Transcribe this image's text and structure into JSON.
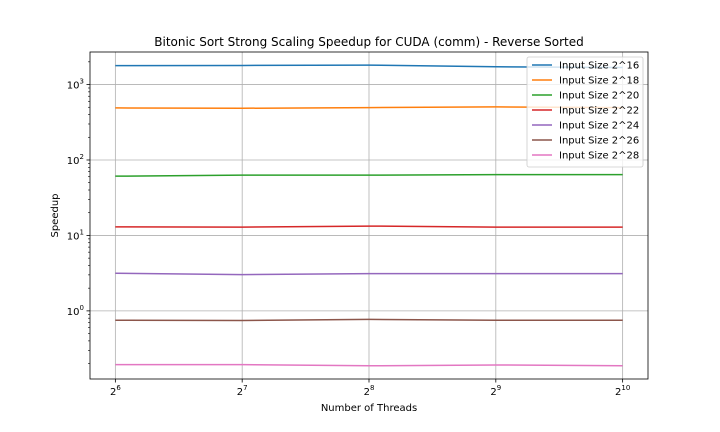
{
  "chart_data": {
    "type": "line",
    "title": "Bitonic Sort Strong Scaling Speedup for CUDA (comm) - Reverse Sorted",
    "xlabel": "Number of Threads",
    "ylabel": "Speedup",
    "x": [
      64,
      128,
      256,
      512,
      1024
    ],
    "x_tick_labels": [
      {
        "base": "2",
        "exp": "6"
      },
      {
        "base": "2",
        "exp": "7"
      },
      {
        "base": "2",
        "exp": "8"
      },
      {
        "base": "2",
        "exp": "9"
      },
      {
        "base": "2",
        "exp": "10"
      }
    ],
    "y_scale": "log",
    "ylim": [
      0.125,
      2700
    ],
    "y_tick_labels": [
      {
        "value": 1,
        "base": "10",
        "exp": "0"
      },
      {
        "value": 10,
        "base": "10",
        "exp": "1"
      },
      {
        "value": 100,
        "base": "10",
        "exp": "2"
      },
      {
        "value": 1000,
        "base": "10",
        "exp": "3"
      }
    ],
    "grid": true,
    "legend_position": "top-right",
    "series": [
      {
        "name": "Input Size 2^16",
        "color": "#1f77b4",
        "values": [
          1780,
          1790,
          1810,
          1720,
          1680
        ]
      },
      {
        "name": "Input Size 2^18",
        "color": "#ff7f0e",
        "values": [
          490,
          485,
          495,
          505,
          495
        ]
      },
      {
        "name": "Input Size 2^20",
        "color": "#2ca02c",
        "values": [
          61,
          63,
          63,
          64,
          64
        ]
      },
      {
        "name": "Input Size 2^22",
        "color": "#d62728",
        "values": [
          13.0,
          12.9,
          13.3,
          12.9,
          12.9
        ]
      },
      {
        "name": "Input Size 2^24",
        "color": "#9467bd",
        "values": [
          3.15,
          3.02,
          3.12,
          3.12,
          3.12
        ]
      },
      {
        "name": "Input Size 2^26",
        "color": "#8c564b",
        "values": [
          0.75,
          0.745,
          0.77,
          0.75,
          0.75
        ]
      },
      {
        "name": "Input Size 2^28",
        "color": "#e377c2",
        "values": [
          0.194,
          0.194,
          0.187,
          0.192,
          0.187
        ]
      }
    ]
  }
}
